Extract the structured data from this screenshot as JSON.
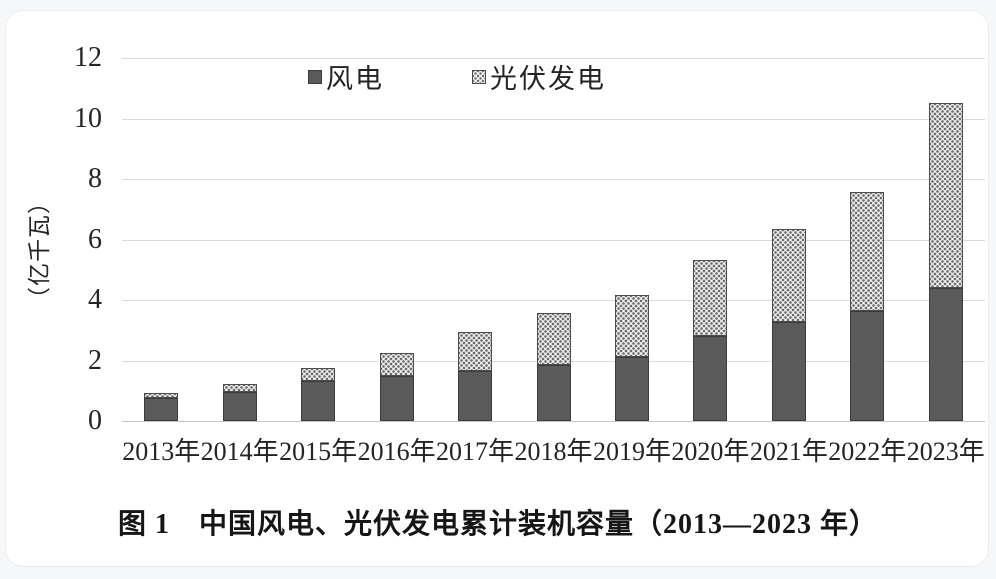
{
  "window": {
    "background_color": "#f6f7f8",
    "card_color": "#ffffff"
  },
  "chart_data": {
    "type": "bar",
    "stacked": true,
    "title": "图 1　中国风电、光伏发电累计装机容量（2013—2023 年）",
    "ylabel": "（亿千瓦）",
    "categories": [
      "2013年",
      "2014年",
      "2015年",
      "2016年",
      "2017年",
      "2018年",
      "2019年",
      "2020年",
      "2021年",
      "2022年",
      "2023年"
    ],
    "series": [
      {
        "name": "风电",
        "pattern": "solid",
        "color": "#5a5a5a",
        "values": [
          0.77,
          0.96,
          1.31,
          1.49,
          1.64,
          1.84,
          2.1,
          2.8,
          3.28,
          3.65,
          4.41
        ]
      },
      {
        "name": "光伏发电",
        "pattern": "dotted",
        "color": "#eeeeee",
        "dot_color": "#6b6b6b",
        "values": [
          0.17,
          0.26,
          0.43,
          0.76,
          1.3,
          1.74,
          2.05,
          2.53,
          3.06,
          3.93,
          6.09
        ]
      }
    ],
    "ylim": [
      0,
      12
    ],
    "yticks": [
      0,
      2,
      4,
      6,
      8,
      10,
      12
    ],
    "grid": true,
    "gridline_color": "#dadada",
    "axis_color": "#c4c4c4",
    "legend_position": "top-center"
  }
}
